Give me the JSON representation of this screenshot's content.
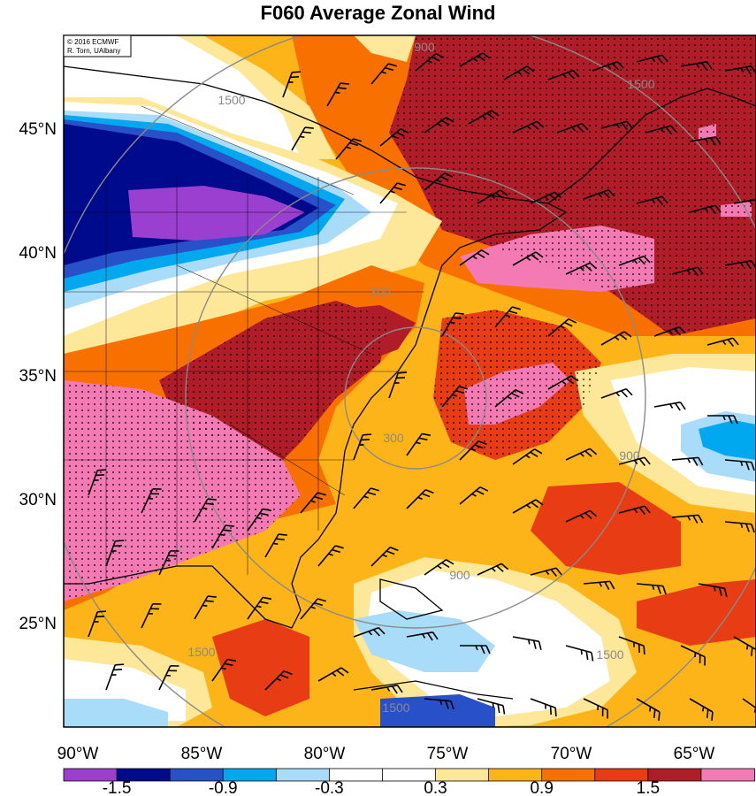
{
  "title": "F060 Average Zonal Wind",
  "credit": {
    "line1": "© 2016 ECMWF",
    "line2": "R. Torn, UAlbany"
  },
  "map": {
    "lat_labels": [
      "45°N",
      "40°N",
      "35°N",
      "30°N",
      "25°N"
    ],
    "lon_labels": [
      "90°W",
      "85°W",
      "80°W",
      "75°W",
      "70°W",
      "65°W"
    ],
    "range_ring_labels": [
      "300",
      "900",
      "900",
      "1500",
      "1500",
      "1500",
      "1500",
      "900",
      "1500",
      "300"
    ]
  },
  "colorbar": {
    "colors": [
      "#9b3fd0",
      "#000a8c",
      "#2850c8",
      "#00a8f0",
      "#a8dcf8",
      "#ffffff",
      "#ffffff",
      "#fde89a",
      "#fcb418",
      "#f87000",
      "#e83c14",
      "#b01c28",
      "#f47ab4"
    ],
    "labels": [
      "-1.5",
      "-0.9",
      "-0.3",
      "0.3",
      "0.9",
      "1.5"
    ]
  },
  "palette": {
    "purple": "#9b3fd0",
    "navy": "#000a8c",
    "blue": "#2850c8",
    "cyan": "#00a8f0",
    "lightblue": "#a8dcf8",
    "white": "#ffffff",
    "yellow": "#fde89a",
    "orange": "#fcb418",
    "darkorange": "#f87000",
    "red": "#e83c14",
    "darkred": "#b01c28",
    "pink": "#f47ab4"
  }
}
